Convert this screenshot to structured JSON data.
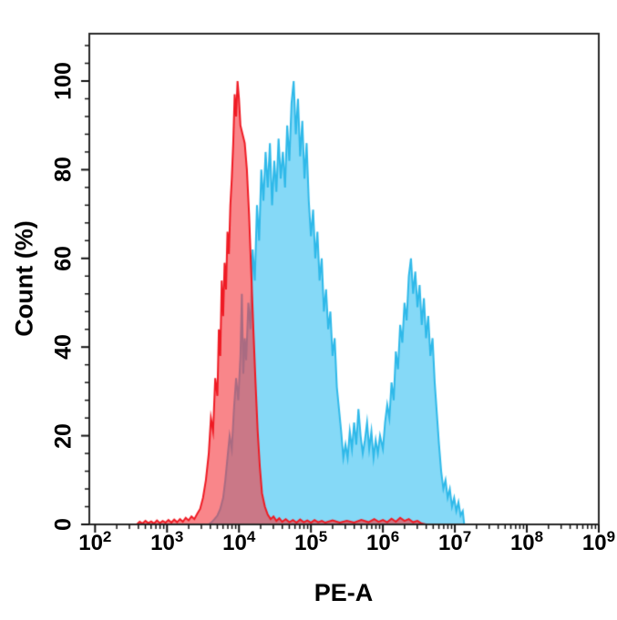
{
  "figure": {
    "background": "#ffffff",
    "axis_color": "#2a2a2a",
    "tick_color": "#111111"
  },
  "chart_data": {
    "type": "area",
    "subtype": "flow-cytometry-overlay-histogram",
    "title": "",
    "xlabel": "PE-A",
    "ylabel": "Count (%)",
    "x_scale": "log10",
    "xlim_log10": [
      1.92,
      9
    ],
    "ylim": [
      0,
      100
    ],
    "grid": false,
    "legend": null,
    "x_tick_base": "10",
    "x_major_tick_exponents": [
      2,
      3,
      4,
      5,
      6,
      7,
      8,
      9
    ],
    "x_minor_tick_mantissas": [
      2,
      3,
      4,
      5,
      6,
      7,
      8,
      9
    ],
    "y_ticks": [
      0,
      20,
      40,
      60,
      80,
      100
    ],
    "y_minor_tick_step": 4,
    "series": [
      {
        "name": "blue-histogram",
        "fill": "#85D9F7",
        "fill_opacity": 1,
        "line": "#2FB9E9",
        "line_width": 2,
        "points_log10x_percent": [
          [
            2.0,
            0
          ],
          [
            3.58,
            0
          ],
          [
            3.62,
            0.5
          ],
          [
            3.66,
            1.2
          ],
          [
            3.7,
            2
          ],
          [
            3.74,
            3.5
          ],
          [
            3.78,
            6
          ],
          [
            3.81,
            10
          ],
          [
            3.84,
            15
          ],
          [
            3.87,
            20
          ],
          [
            3.9,
            17
          ],
          [
            3.93,
            26
          ],
          [
            3.96,
            33
          ],
          [
            3.99,
            28
          ],
          [
            4.02,
            38
          ],
          [
            4.04,
            52
          ],
          [
            4.06,
            34
          ],
          [
            4.08,
            42
          ],
          [
            4.1,
            37
          ],
          [
            4.13,
            50
          ],
          [
            4.16,
            44
          ],
          [
            4.19,
            62
          ],
          [
            4.22,
            55
          ],
          [
            4.25,
            72
          ],
          [
            4.28,
            64
          ],
          [
            4.31,
            80
          ],
          [
            4.34,
            73
          ],
          [
            4.37,
            84
          ],
          [
            4.4,
            76
          ],
          [
            4.43,
            86
          ],
          [
            4.46,
            72
          ],
          [
            4.49,
            82
          ],
          [
            4.52,
            75
          ],
          [
            4.55,
            87
          ],
          [
            4.58,
            78
          ],
          [
            4.61,
            84
          ],
          [
            4.64,
            76
          ],
          [
            4.67,
            90
          ],
          [
            4.7,
            82
          ],
          [
            4.73,
            95
          ],
          [
            4.76,
            100
          ],
          [
            4.79,
            88
          ],
          [
            4.82,
            96
          ],
          [
            4.85,
            83
          ],
          [
            4.88,
            91
          ],
          [
            4.91,
            78
          ],
          [
            4.94,
            86
          ],
          [
            4.97,
            73
          ],
          [
            5.0,
            65
          ],
          [
            5.03,
            71
          ],
          [
            5.06,
            60
          ],
          [
            5.09,
            66
          ],
          [
            5.12,
            55
          ],
          [
            5.15,
            60
          ],
          [
            5.18,
            48
          ],
          [
            5.21,
            53
          ],
          [
            5.24,
            44
          ],
          [
            5.27,
            48
          ],
          [
            5.3,
            38
          ],
          [
            5.33,
            42
          ],
          [
            5.36,
            31
          ],
          [
            5.39,
            26
          ],
          [
            5.42,
            21
          ],
          [
            5.45,
            15
          ],
          [
            5.48,
            18
          ],
          [
            5.51,
            15
          ],
          [
            5.54,
            21
          ],
          [
            5.57,
            17
          ],
          [
            5.6,
            23
          ],
          [
            5.63,
            18
          ],
          [
            5.66,
            26
          ],
          [
            5.69,
            20
          ],
          [
            5.72,
            16
          ],
          [
            5.75,
            19
          ],
          [
            5.78,
            23
          ],
          [
            5.81,
            17
          ],
          [
            5.84,
            21
          ],
          [
            5.87,
            15
          ],
          [
            5.9,
            19
          ],
          [
            5.93,
            16
          ],
          [
            5.96,
            20
          ],
          [
            6.0,
            17
          ],
          [
            6.03,
            23
          ],
          [
            6.06,
            27
          ],
          [
            6.09,
            24
          ],
          [
            6.12,
            32
          ],
          [
            6.15,
            28
          ],
          [
            6.18,
            39
          ],
          [
            6.21,
            35
          ],
          [
            6.24,
            45
          ],
          [
            6.27,
            41
          ],
          [
            6.3,
            50
          ],
          [
            6.33,
            46
          ],
          [
            6.36,
            56
          ],
          [
            6.39,
            60
          ],
          [
            6.42,
            52
          ],
          [
            6.45,
            57
          ],
          [
            6.48,
            49
          ],
          [
            6.51,
            54
          ],
          [
            6.54,
            45
          ],
          [
            6.57,
            51
          ],
          [
            6.6,
            42
          ],
          [
            6.63,
            47
          ],
          [
            6.66,
            38
          ],
          [
            6.69,
            42
          ],
          [
            6.72,
            32
          ],
          [
            6.75,
            25
          ],
          [
            6.78,
            18
          ],
          [
            6.81,
            12
          ],
          [
            6.84,
            8
          ],
          [
            6.87,
            10
          ],
          [
            6.9,
            6
          ],
          [
            6.93,
            8
          ],
          [
            6.96,
            4
          ],
          [
            6.99,
            6
          ],
          [
            7.02,
            3
          ],
          [
            7.05,
            5
          ],
          [
            7.08,
            2
          ],
          [
            7.11,
            3
          ],
          [
            7.13,
            0
          ],
          [
            9.0,
            0
          ]
        ]
      },
      {
        "name": "red-histogram",
        "fill": "#F63C42",
        "fill_opacity": 0.62,
        "line": "#EF1B24",
        "line_width": 2,
        "points_log10x_percent": [
          [
            2.0,
            0
          ],
          [
            2.58,
            0
          ],
          [
            2.62,
            0.6
          ],
          [
            2.66,
            0.2
          ],
          [
            2.7,
            0.8
          ],
          [
            2.74,
            0.3
          ],
          [
            2.78,
            0.7
          ],
          [
            2.82,
            0.2
          ],
          [
            2.86,
            0.9
          ],
          [
            2.9,
            0.3
          ],
          [
            2.94,
            0.8
          ],
          [
            2.98,
            0.4
          ],
          [
            3.02,
            1.0
          ],
          [
            3.06,
            0.4
          ],
          [
            3.1,
            1.1
          ],
          [
            3.14,
            0.5
          ],
          [
            3.18,
            1.2
          ],
          [
            3.22,
            0.6
          ],
          [
            3.26,
            1.5
          ],
          [
            3.3,
            0.9
          ],
          [
            3.34,
            1.8
          ],
          [
            3.38,
            1.2
          ],
          [
            3.42,
            2.4
          ],
          [
            3.46,
            3.5
          ],
          [
            3.5,
            6
          ],
          [
            3.54,
            10
          ],
          [
            3.58,
            16
          ],
          [
            3.61,
            24
          ],
          [
            3.64,
            21
          ],
          [
            3.67,
            33
          ],
          [
            3.7,
            29
          ],
          [
            3.72,
            44
          ],
          [
            3.74,
            38
          ],
          [
            3.76,
            55
          ],
          [
            3.78,
            47
          ],
          [
            3.8,
            59
          ],
          [
            3.82,
            53
          ],
          [
            3.84,
            66
          ],
          [
            3.86,
            61
          ],
          [
            3.88,
            72
          ],
          [
            3.9,
            78
          ],
          [
            3.92,
            86
          ],
          [
            3.94,
            97
          ],
          [
            3.96,
            92
          ],
          [
            3.98,
            100
          ],
          [
            4.0,
            96
          ],
          [
            4.02,
            90
          ],
          [
            4.05,
            88
          ],
          [
            4.08,
            86
          ],
          [
            4.11,
            80
          ],
          [
            4.14,
            70
          ],
          [
            4.17,
            57
          ],
          [
            4.2,
            44
          ],
          [
            4.23,
            32
          ],
          [
            4.26,
            21
          ],
          [
            4.29,
            13
          ],
          [
            4.32,
            7
          ],
          [
            4.36,
            4
          ],
          [
            4.4,
            2.2
          ],
          [
            4.44,
            1.2
          ],
          [
            4.48,
            1.8
          ],
          [
            4.52,
            0.8
          ],
          [
            4.56,
            1.4
          ],
          [
            4.6,
            0.6
          ],
          [
            4.65,
            1.2
          ],
          [
            4.7,
            0.5
          ],
          [
            4.75,
            1.0
          ],
          [
            4.8,
            0.4
          ],
          [
            4.85,
            1.1
          ],
          [
            4.9,
            0.5
          ],
          [
            4.95,
            0.9
          ],
          [
            5.0,
            0.4
          ],
          [
            5.05,
            1.0
          ],
          [
            5.1,
            0.5
          ],
          [
            5.15,
            0.8
          ],
          [
            5.2,
            0.4
          ],
          [
            5.3,
            0.9
          ],
          [
            5.4,
            0.4
          ],
          [
            5.5,
            0.8
          ],
          [
            5.6,
            0.4
          ],
          [
            5.7,
            1.0
          ],
          [
            5.8,
            0.5
          ],
          [
            5.88,
            1.2
          ],
          [
            5.94,
            0.6
          ],
          [
            6.0,
            1.0
          ],
          [
            6.06,
            0.5
          ],
          [
            6.12,
            1.3
          ],
          [
            6.18,
            0.6
          ],
          [
            6.24,
            1.5
          ],
          [
            6.3,
            0.8
          ],
          [
            6.36,
            1.2
          ],
          [
            6.42,
            0.5
          ],
          [
            6.48,
            0.8
          ],
          [
            6.54,
            0.2
          ],
          [
            6.6,
            0
          ],
          [
            9.0,
            0
          ]
        ]
      }
    ]
  }
}
